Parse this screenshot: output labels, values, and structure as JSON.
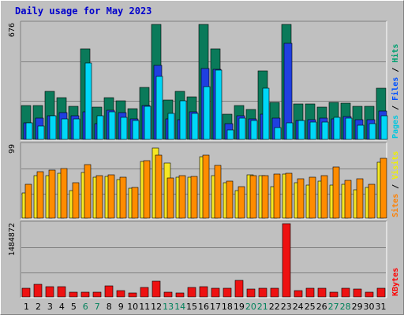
{
  "chart_data": {
    "type": "bar",
    "title": "Daily usage for May 2023",
    "days": [
      "1",
      "2",
      "3",
      "4",
      "5",
      "6",
      "7",
      "8",
      "9",
      "10",
      "11",
      "12",
      "13",
      "14",
      "15",
      "16",
      "17",
      "18",
      "19",
      "20",
      "21",
      "22",
      "23",
      "24",
      "25",
      "26",
      "27",
      "28",
      "29",
      "30",
      "31"
    ],
    "weekend_days": [
      "6",
      "7",
      "13",
      "14",
      "20",
      "21",
      "27",
      "28"
    ],
    "panels": [
      {
        "id": "hits",
        "max_label": "676",
        "ylim": [
          0,
          676
        ],
        "legend": [
          {
            "text": "Pages",
            "color": "#00c8e0"
          },
          {
            "text": "Files",
            "color": "#0050ff"
          },
          {
            "text": "Hits",
            "color": "#00a070"
          }
        ],
        "series": [
          {
            "name": "Hits",
            "color": "#0a7a5a",
            "values": [
              200,
              200,
              280,
              245,
              195,
              530,
              190,
              245,
              225,
              180,
              305,
              670,
              230,
              280,
              250,
              670,
              530,
              145,
              200,
              175,
              400,
              215,
              670,
              205,
              205,
              190,
              215,
              210,
              195,
              195,
              300
            ]
          },
          {
            "name": "Files",
            "color": "#1f3fe0",
            "values": [
              95,
              125,
              140,
              155,
              140,
              160,
              90,
              170,
              155,
              120,
              200,
              430,
              120,
              115,
              160,
              415,
              410,
              90,
              140,
              120,
              145,
              125,
              560,
              110,
              115,
              125,
              120,
              135,
              115,
              115,
              165
            ]
          },
          {
            "name": "Pages",
            "color": "#00d7f7",
            "values": [
              95,
              80,
              140,
              120,
              120,
              445,
              140,
              160,
              130,
              110,
              195,
              370,
              150,
              225,
              150,
              310,
              405,
              55,
              125,
              110,
              300,
              70,
              95,
              110,
              100,
              100,
              130,
              125,
              85,
              90,
              140
            ]
          }
        ]
      },
      {
        "id": "visits",
        "max_label": "99",
        "ylim": [
          0,
          99
        ],
        "legend": [
          {
            "text": "Sites",
            "color": "#ff8000"
          },
          {
            "text": "Visits",
            "color": "#f0f000"
          }
        ],
        "series": [
          {
            "name": "Visits",
            "color": "#f5e623",
            "values": [
              34,
              57,
              58,
              61,
              37,
              62,
              55,
              56,
              52,
              40,
              77,
              95,
              75,
              55,
              55,
              83,
              57,
              48,
              37,
              59,
              57,
              43,
              60,
              48,
              45,
              50,
              45,
              46,
              38,
              42,
              76
            ]
          },
          {
            "name": "Sites",
            "color": "#ff8c00",
            "values": [
              46,
              63,
              65,
              67,
              48,
              72,
              57,
              59,
              55,
              42,
              78,
              85,
              54,
              57,
              56,
              85,
              71,
              50,
              43,
              57,
              57,
              60,
              61,
              53,
              55,
              57,
              69,
              51,
              53,
              46,
              81
            ]
          }
        ]
      },
      {
        "id": "kbytes",
        "max_label": "1484872",
        "ylim": [
          0,
          1484872
        ],
        "legend": [
          {
            "text": "KBytes",
            "color": "#ff0000"
          }
        ],
        "series": [
          {
            "name": "KBytes",
            "color": "#ee1111",
            "values": [
              175000,
              250000,
              215000,
              215000,
              100000,
              100000,
              100000,
              230000,
              135000,
              75000,
              185000,
              325000,
              100000,
              75000,
              195000,
              215000,
              175000,
              175000,
              340000,
              160000,
              175000,
              175000,
              1484872,
              135000,
              175000,
              175000,
              100000,
              175000,
              160000,
              100000,
              175000
            ]
          }
        ]
      }
    ]
  }
}
